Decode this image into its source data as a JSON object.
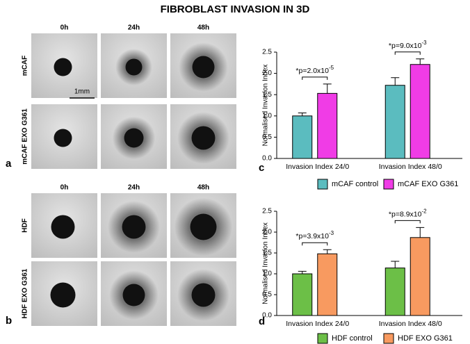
{
  "title": "FIBROBLAST INVASION IN 3D",
  "panel_labels": [
    "a",
    "b",
    "c",
    "d"
  ],
  "panel_a": {
    "columns": [
      "0h",
      "24h",
      "48h"
    ],
    "rows": [
      "mCAF",
      "mCAF EXO G361"
    ],
    "scale_bar": "1mm"
  },
  "panel_b": {
    "columns": [
      "0h",
      "24h",
      "48h"
    ],
    "rows": [
      "HDF",
      "HDF EXO G361"
    ]
  },
  "chart_data": [
    {
      "type": "bar",
      "y_label": "Normalised Invasion Index",
      "categories": [
        "Invasion Index 24/0",
        "Invasion Index 48/0"
      ],
      "series": [
        {
          "name": "mCAF control",
          "color": "#5bbcbf",
          "values": [
            1.0,
            1.72
          ],
          "errors": [
            0.07,
            0.18
          ]
        },
        {
          "name": "mCAF EXO G361",
          "color": "#f03ce6",
          "values": [
            1.53,
            2.21
          ],
          "errors": [
            0.22,
            0.13
          ]
        }
      ],
      "annotations": [
        {
          "text": "*p=2.0x10",
          "exponent": "-5"
        },
        {
          "text": "*p=9.0x10",
          "exponent": "-3"
        }
      ],
      "ylim": [
        0,
        2.5
      ],
      "yticks": [
        {
          "value": 0,
          "label": "0.0"
        },
        0.5,
        {
          "value": 1,
          "label": "1.0"
        },
        1.5,
        {
          "value": 2,
          "label": "2.0"
        },
        2.5
      ]
    },
    {
      "type": "bar",
      "y_label": "Normalised Invasion Index",
      "categories": [
        "Invasion Index 24/0",
        "Invasion Index 48/0"
      ],
      "series": [
        {
          "name": "HDF control",
          "color": "#6cbf47",
          "values": [
            1.0,
            1.14
          ],
          "errors": [
            0.06,
            0.16
          ]
        },
        {
          "name": "HDF EXO G361",
          "color": "#f89a60",
          "values": [
            1.48,
            1.87
          ],
          "errors": [
            0.1,
            0.24
          ]
        }
      ],
      "annotations": [
        {
          "text": "*p=3.9x10",
          "exponent": "-3"
        },
        {
          "text": "*p=8.9x10",
          "exponent": "-2"
        }
      ],
      "ylim": [
        0,
        2.5
      ],
      "yticks": [
        {
          "value": 0,
          "label": "0.0"
        },
        0.5,
        {
          "value": 1,
          "label": "1.0"
        },
        1.5,
        {
          "value": 2,
          "label": "2.0"
        },
        2.5
      ]
    }
  ]
}
